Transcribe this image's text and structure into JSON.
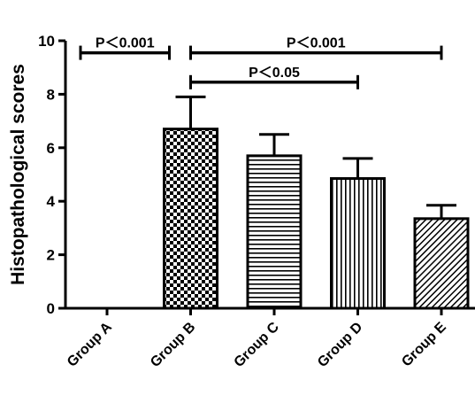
{
  "chart_data": {
    "type": "bar",
    "title": "",
    "xlabel": "",
    "ylabel": "Histopathological scores",
    "ylim": [
      0,
      10
    ],
    "yticks": [
      0,
      2,
      4,
      6,
      8,
      10
    ],
    "categories": [
      "Group A",
      "Group B",
      "Group C",
      "Group D",
      "Group E"
    ],
    "values": [
      0,
      6.7,
      5.7,
      4.85,
      3.35
    ],
    "errors": [
      0,
      1.2,
      0.8,
      0.75,
      0.5
    ],
    "patterns": [
      "none",
      "checkerboard",
      "horizontal-stripes",
      "vertical-stripes",
      "diagonal-hatch"
    ],
    "annotations": [
      {
        "text": "P＜0.001",
        "from": "Group A",
        "to": "Group B",
        "y": 9.55
      },
      {
        "text": "P＜0.001",
        "from": "Group B",
        "to": "Group E",
        "y": 9.55
      },
      {
        "text": "P＜0.05",
        "from": "Group B",
        "to": "Group D",
        "y": 8.45
      }
    ],
    "grid": false,
    "legend": "none"
  }
}
